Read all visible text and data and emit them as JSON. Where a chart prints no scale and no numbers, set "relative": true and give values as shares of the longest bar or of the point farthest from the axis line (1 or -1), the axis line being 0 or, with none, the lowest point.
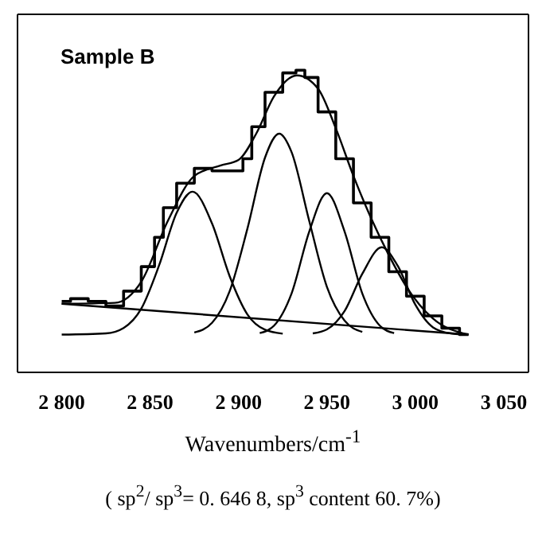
{
  "chart_data": {
    "type": "line",
    "relative": true,
    "xlabel": "Wavenumbers/cm$^{-1}$",
    "annotations": [
      "Sample B",
      "( sp$^{2}$/ sp$^{3}$= 0. 646 8,  sp$^{3}$ content 60. 7%)"
    ],
    "xlim": [
      2775,
      3064
    ],
    "xticks": [
      {
        "value": 2800,
        "label": "2 800"
      },
      {
        "value": 2850,
        "label": "2 850"
      },
      {
        "value": 2900,
        "label": "2 900"
      },
      {
        "value": 2950,
        "label": "2 950"
      },
      {
        "value": 3000,
        "label": "3 000"
      },
      {
        "value": 3050,
        "label": "3 050"
      }
    ],
    "grid": false,
    "marker": "none",
    "line_style": "solid",
    "series": [
      {
        "type": "step",
        "color": "#000000",
        "x": [
          2800,
          2810,
          2820,
          2830,
          2840,
          2850,
          2855,
          2860,
          2870,
          2880,
          2890,
          2900,
          2905,
          2910,
          2920,
          2930,
          2935,
          2940,
          2950,
          2960,
          2970,
          2980,
          2990,
          3000,
          3010,
          3020,
          3030
        ],
        "values": [
          0.235,
          0.244,
          0.235,
          0.22,
          0.269,
          0.35,
          0.447,
          0.545,
          0.626,
          0.675,
          0.667,
          0.667,
          0.707,
          0.813,
          0.927,
          0.991,
          1.0,
          0.976,
          0.862,
          0.707,
          0.561,
          0.447,
          0.333,
          0.252,
          0.187,
          0.146,
          0.125
        ]
      },
      {
        "type": "line",
        "color": "#000000",
        "x": [
          2800,
          2830,
          2845,
          2860,
          2875,
          2890,
          2900,
          2910,
          2920,
          2933,
          2945,
          2955,
          2965,
          2975,
          2985,
          2995,
          3010,
          3030
        ],
        "values": [
          0.227,
          0.23,
          0.3,
          0.501,
          0.65,
          0.685,
          0.703,
          0.79,
          0.913,
          0.983,
          0.939,
          0.808,
          0.65,
          0.51,
          0.388,
          0.283,
          0.178,
          0.125
        ]
      },
      {
        "type": "line",
        "color": "#000000",
        "x": [
          2800,
          2825,
          2835,
          2845,
          2855,
          2865,
          2874,
          2885,
          2895,
          2905,
          2915,
          2925
        ],
        "values": [
          0.125,
          0.129,
          0.147,
          0.211,
          0.353,
          0.528,
          0.598,
          0.493,
          0.318,
          0.192,
          0.141,
          0.128
        ]
      },
      {
        "type": "line",
        "color": "#000000",
        "x": [
          2875,
          2885,
          2895,
          2905,
          2915,
          2923,
          2930,
          2940,
          2950,
          2960,
          2970
        ],
        "values": [
          0.132,
          0.164,
          0.269,
          0.475,
          0.711,
          0.79,
          0.729,
          0.501,
          0.283,
          0.171,
          0.134
        ]
      },
      {
        "type": "line",
        "color": "#000000",
        "x": [
          2912,
          2920,
          2930,
          2940,
          2950,
          2960,
          2970,
          2980,
          2988
        ],
        "values": [
          0.13,
          0.154,
          0.261,
          0.466,
          0.593,
          0.466,
          0.261,
          0.154,
          0.13
        ]
      },
      {
        "type": "line",
        "color": "#000000",
        "x": [
          2942,
          2950,
          2960,
          2970,
          2981,
          2990,
          3000,
          3010,
          3020,
          3030
        ],
        "values": [
          0.129,
          0.142,
          0.203,
          0.326,
          0.414,
          0.353,
          0.224,
          0.149,
          0.129,
          0.125
        ]
      },
      {
        "type": "line",
        "color": "#000000",
        "x": [
          2800,
          3030
        ],
        "values": [
          0.227,
          0.125
        ]
      }
    ]
  }
}
